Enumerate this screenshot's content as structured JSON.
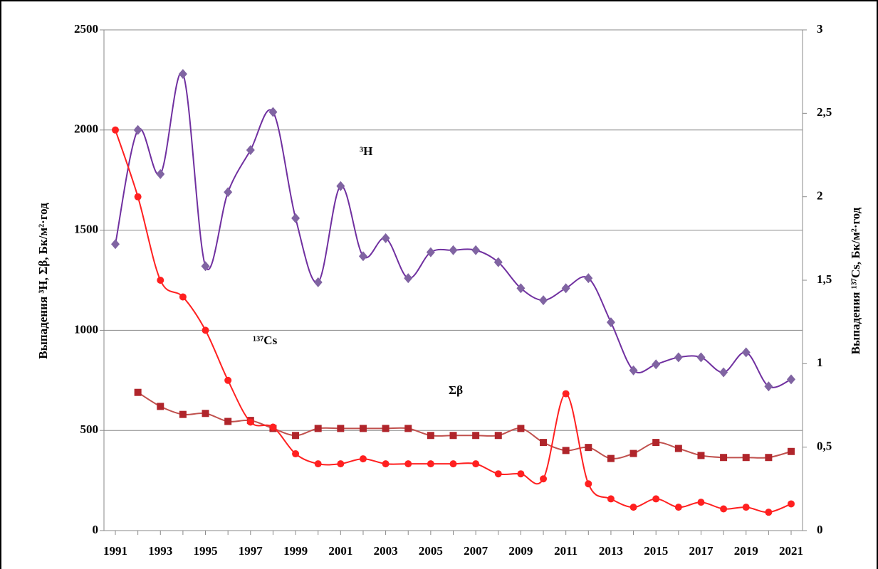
{
  "chart_data": {
    "type": "line",
    "y_label": "Выпадения ³H, Σβ, Бк/м²·год",
    "y2_label": "Выпадения ¹³⁷Cs, Бк/м²·год",
    "categories": [
      "1991",
      null,
      "1993",
      null,
      "1995",
      null,
      "1997",
      null,
      "1999",
      null,
      "2001",
      null,
      "2003",
      null,
      "2005",
      null,
      "2007",
      null,
      "2009",
      null,
      "2011",
      null,
      "2013",
      null,
      "2015",
      null,
      "2017",
      null,
      "2019",
      null,
      "2021"
    ],
    "ylim": [
      0,
      2500
    ],
    "yticks": [
      0,
      500,
      1000,
      1500,
      2000,
      2500
    ],
    "y2lim": [
      0,
      3
    ],
    "y2ticks": [
      0,
      {
        "value": 0.5,
        "label": "0,5"
      },
      1,
      {
        "value": 1.5,
        "label": "1,5"
      },
      2,
      {
        "value": 2.5,
        "label": "2,5"
      },
      3
    ],
    "grid": true,
    "series": [
      {
        "name": "³H",
        "color": "#7030a0",
        "marker": "diamond",
        "marker_color": "#8064a2",
        "values": [
          1430,
          2000,
          1780,
          2280,
          1320,
          1690,
          1900,
          2090,
          1560,
          1240,
          1720,
          1370,
          1460,
          1260,
          1390,
          1400,
          1400,
          1340,
          1210,
          1150,
          1210,
          1260,
          1040,
          800,
          830,
          865,
          865,
          790,
          890,
          720,
          755
        ]
      },
      {
        "name": "Σβ",
        "color": "#c0504d",
        "marker": "square",
        "marker_color": "#b0252b",
        "values": [
          null,
          690,
          620,
          580,
          585,
          545,
          550,
          510,
          475,
          510,
          510,
          510,
          510,
          510,
          475,
          475,
          475,
          475,
          510,
          440,
          400,
          415,
          360,
          385,
          440,
          410,
          375,
          365,
          365,
          365,
          395
        ]
      },
      {
        "name": "¹³⁷Cs",
        "color": "#ff2020",
        "marker": "circle",
        "marker_color": "#ff2020",
        "axis": "y2",
        "values": [
          2.4,
          2.0,
          1.5,
          1.4,
          1.2,
          0.9,
          0.65,
          0.62,
          0.46,
          0.4,
          0.4,
          0.43,
          0.4,
          0.4,
          0.4,
          0.4,
          0.4,
          0.34,
          0.34,
          0.31,
          0.82,
          0.28,
          0.19,
          0.14,
          0.19,
          0.14,
          0.17,
          0.13,
          0.14,
          0.11,
          0.16
        ]
      }
    ]
  }
}
